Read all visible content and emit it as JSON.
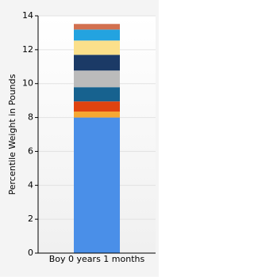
{
  "chart_data": {
    "type": "stacked-bar",
    "ylabel": "Percentile Weight in Pounds",
    "categories": [
      "Boy 0 years 1 months"
    ],
    "series": [
      {
        "color": "#4a8fe8",
        "values": [
          8.0
        ]
      },
      {
        "color": "#f5a832",
        "values": [
          0.35
        ]
      },
      {
        "color": "#df4310",
        "values": [
          0.6
        ]
      },
      {
        "color": "#17628f",
        "values": [
          0.84
        ]
      },
      {
        "color": "#bbbbbb",
        "values": [
          0.98
        ]
      },
      {
        "color": "#1b3a66",
        "values": [
          0.93
        ]
      },
      {
        "color": "#fbe08b",
        "values": [
          0.84
        ]
      },
      {
        "color": "#23a3e0",
        "values": [
          0.65
        ]
      },
      {
        "color": "#d2704f",
        "values": [
          0.33
        ]
      }
    ],
    "ylim": [
      0,
      14
    ],
    "yticks": [
      0,
      2,
      4,
      6,
      8,
      10,
      12,
      14
    ],
    "grid": true
  }
}
